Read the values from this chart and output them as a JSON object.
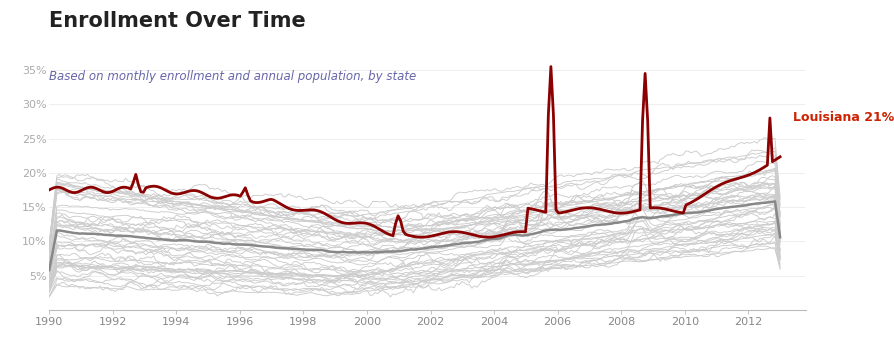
{
  "title": "Enrollment Over Time",
  "subtitle": "Based on monthly enrollment and annual population, by state",
  "title_color": "#222222",
  "subtitle_color": "#6666aa",
  "background_color": "#ffffff",
  "louisiana_color": "#8b0000",
  "other_states_color": "#cccccc",
  "national_avg_color": "#888888",
  "label_color": "#cc2200",
  "label_text": "Louisiana 21%",
  "xlim": [
    1990,
    2013.8
  ],
  "ylim": [
    0.0,
    0.37
  ],
  "yticks": [
    0.05,
    0.1,
    0.15,
    0.2,
    0.25,
    0.3,
    0.35
  ],
  "ytick_labels": [
    "5%",
    "10%",
    "15%",
    "20%",
    "25%",
    "30%",
    "35%"
  ],
  "xticks": [
    1990,
    1992,
    1994,
    1996,
    1998,
    2000,
    2002,
    2004,
    2006,
    2008,
    2010,
    2012
  ],
  "num_other_states": 48,
  "num_months": 288
}
